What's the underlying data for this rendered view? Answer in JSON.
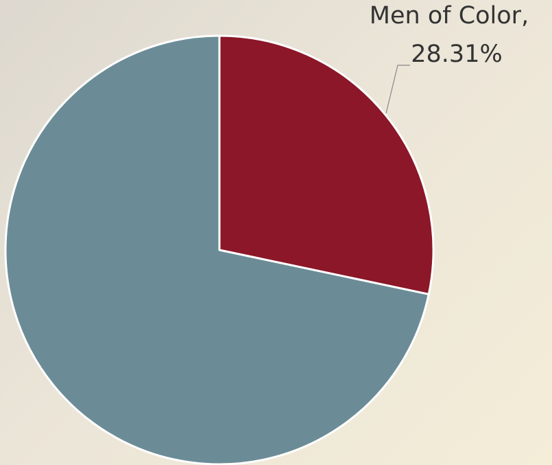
{
  "chart_data": {
    "type": "pie",
    "categories": [
      "Men of Color,",
      null
    ],
    "values": [
      28.31,
      71.69
    ],
    "value_labels": [
      "28.31%",
      null
    ],
    "colors": [
      "#8b1728",
      "#6b8c97"
    ],
    "start_angle": 0,
    "direction": "clockwise"
  }
}
